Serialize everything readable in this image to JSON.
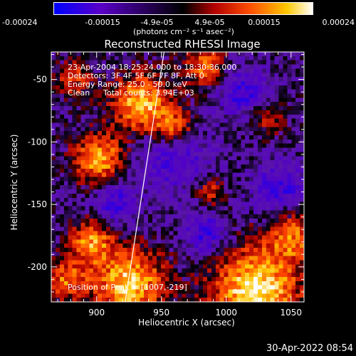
{
  "colorbar": {
    "tick_labels": [
      "-0.00024",
      "-0.00015",
      "-4.9e-05",
      "4.9e-05",
      "0.00015",
      "0.00024"
    ],
    "tick_values": [
      -0.00024,
      -0.00015,
      -4.9e-05,
      4.9e-05,
      0.00015,
      0.00024
    ],
    "range": [
      -0.00024,
      0.00024
    ],
    "units_label": "(photons cm⁻² s⁻¹ asec⁻²)",
    "colors": [
      "#0000ff",
      "#5a00c8",
      "#000000",
      "#b40000",
      "#ff5000",
      "#ffc800",
      "#ffffff"
    ]
  },
  "chart_data": {
    "type": "heatmap",
    "title": "Reconstructed RHESSI Image",
    "xlabel": "Heliocentric X (arcsec)",
    "ylabel": "Heliocentric Y (arcsec)",
    "xlim": [
      865,
      1060
    ],
    "ylim": [
      -228,
      -28
    ],
    "x_ticks": [
      900,
      950,
      1000,
      1050
    ],
    "y_ticks": [
      -50,
      -100,
      -150,
      -200
    ],
    "x_tick_labels": [
      "900",
      "950",
      "1000",
      "1050"
    ],
    "y_tick_labels": [
      "-50",
      "-100",
      "-150",
      "-200"
    ],
    "limb_line": [
      [
        922,
        -228
      ],
      [
        952,
        -28
      ]
    ],
    "peak": [
      1007,
      -219
    ],
    "annotations": {
      "time_range": "23-Apr-2004 18:25:24.000 to 18:30:36.000",
      "detectors": "Detectors: 3F 4F 5F 6F 7F 8F, Att 0",
      "energy": "Energy Range: 25.0 - 50.0 keV",
      "method": "Clean",
      "total_counts": "Total counts: 3.94E+03",
      "peak_label": "Position of Peak = [1007,-219]"
    }
  },
  "footer": {
    "timestamp": "30-Apr-2022 08:54"
  }
}
